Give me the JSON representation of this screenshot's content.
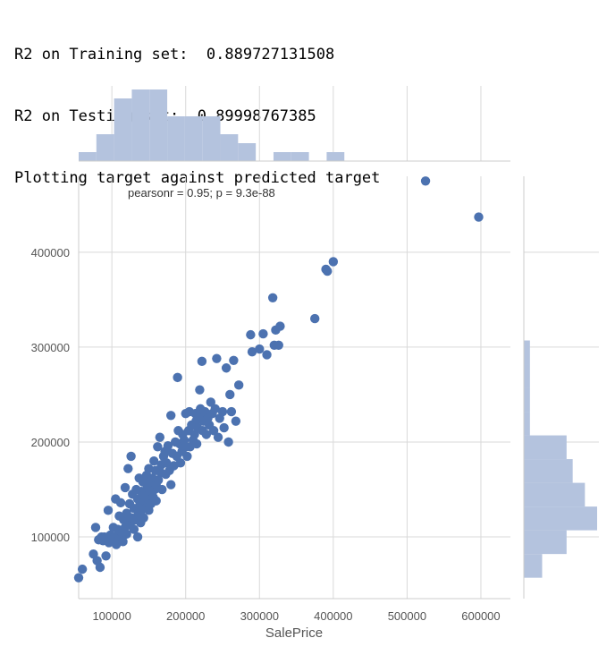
{
  "console": {
    "lines": [
      "R2 on Training set:  0.889727131508",
      "R2 on Testing set:  0.89998767385",
      "Plotting target against predicted target"
    ]
  },
  "chart_data": {
    "type": "scatter",
    "kind": "jointplot",
    "annotation": "pearsonr = 0.95; p = 9.3e-88",
    "xlabel": "SalePrice",
    "ylabel": "",
    "xlim": [
      55000,
      640000
    ],
    "ylim": [
      35000,
      480000
    ],
    "xticks": [
      100000,
      200000,
      300000,
      400000,
      500000,
      600000
    ],
    "yticks": [
      100000,
      200000,
      300000,
      400000
    ],
    "xtick_labels": [
      "100000",
      "200000",
      "300000",
      "400000",
      "500000",
      "600000"
    ],
    "ytick_labels": [
      "100000",
      "200000",
      "300000",
      "400000"
    ],
    "grid": true,
    "colors": {
      "points": "#4c72b0",
      "hist": "#b4c3de",
      "grid": "#d9d9d9",
      "axis": "#cccccc",
      "tick_text": "#555555"
    },
    "points": [
      [
        55000,
        57000
      ],
      [
        60000,
        66000
      ],
      [
        75000,
        82000
      ],
      [
        78000,
        110000
      ],
      [
        80000,
        75000
      ],
      [
        82000,
        97000
      ],
      [
        84000,
        68000
      ],
      [
        86000,
        100000
      ],
      [
        88000,
        96000
      ],
      [
        90000,
        100000
      ],
      [
        92000,
        80000
      ],
      [
        95000,
        128000
      ],
      [
        96000,
        94000
      ],
      [
        98000,
        102000
      ],
      [
        100000,
        97000
      ],
      [
        102000,
        110000
      ],
      [
        104000,
        100000
      ],
      [
        105000,
        140000
      ],
      [
        106000,
        92000
      ],
      [
        108000,
        108000
      ],
      [
        110000,
        98000
      ],
      [
        110000,
        122000
      ],
      [
        112000,
        136000
      ],
      [
        114000,
        104000
      ],
      [
        115000,
        95000
      ],
      [
        116000,
        118000
      ],
      [
        118000,
        152000
      ],
      [
        118000,
        110000
      ],
      [
        120000,
        103000
      ],
      [
        120000,
        125000
      ],
      [
        122000,
        172000
      ],
      [
        124000,
        135000
      ],
      [
        125000,
        114000
      ],
      [
        126000,
        185000
      ],
      [
        127000,
        120000
      ],
      [
        128000,
        145000
      ],
      [
        130000,
        108000
      ],
      [
        130000,
        130000
      ],
      [
        132000,
        118000
      ],
      [
        133000,
        150000
      ],
      [
        135000,
        100000
      ],
      [
        135000,
        140000
      ],
      [
        136000,
        125000
      ],
      [
        137000,
        162000
      ],
      [
        138000,
        134000
      ],
      [
        139000,
        115000
      ],
      [
        140000,
        148000
      ],
      [
        140000,
        128000
      ],
      [
        142000,
        158000
      ],
      [
        143000,
        120000
      ],
      [
        144000,
        145000
      ],
      [
        145000,
        138000
      ],
      [
        146000,
        130000
      ],
      [
        147000,
        165000
      ],
      [
        148000,
        152000
      ],
      [
        149000,
        140000
      ],
      [
        150000,
        128000
      ],
      [
        150000,
        172000
      ],
      [
        152000,
        158000
      ],
      [
        153000,
        135000
      ],
      [
        154000,
        148000
      ],
      [
        155000,
        162000
      ],
      [
        156000,
        142000
      ],
      [
        157000,
        180000
      ],
      [
        158000,
        150000
      ],
      [
        159000,
        170000
      ],
      [
        160000,
        155000
      ],
      [
        160000,
        138000
      ],
      [
        162000,
        195000
      ],
      [
        163000,
        160000
      ],
      [
        165000,
        205000
      ],
      [
        166000,
        168000
      ],
      [
        167000,
        176000
      ],
      [
        168000,
        150000
      ],
      [
        170000,
        185000
      ],
      [
        172000,
        190000
      ],
      [
        173000,
        166000
      ],
      [
        174000,
        178000
      ],
      [
        176000,
        196000
      ],
      [
        178000,
        170000
      ],
      [
        180000,
        228000
      ],
      [
        180000,
        155000
      ],
      [
        182000,
        188000
      ],
      [
        184000,
        175000
      ],
      [
        186000,
        200000
      ],
      [
        188000,
        185000
      ],
      [
        189000,
        268000
      ],
      [
        190000,
        212000
      ],
      [
        192000,
        198000
      ],
      [
        193000,
        178000
      ],
      [
        195000,
        190000
      ],
      [
        196000,
        208000
      ],
      [
        198000,
        202000
      ],
      [
        200000,
        195000
      ],
      [
        200000,
        230000
      ],
      [
        202000,
        185000
      ],
      [
        204000,
        212000
      ],
      [
        205000,
        232000
      ],
      [
        206000,
        195000
      ],
      [
        208000,
        218000
      ],
      [
        210000,
        202000
      ],
      [
        212000,
        208000
      ],
      [
        213000,
        230000
      ],
      [
        214000,
        222000
      ],
      [
        215000,
        198000
      ],
      [
        216000,
        215000
      ],
      [
        218000,
        228000
      ],
      [
        219000,
        255000
      ],
      [
        220000,
        235000
      ],
      [
        221000,
        225000
      ],
      [
        222000,
        285000
      ],
      [
        223000,
        212000
      ],
      [
        224000,
        222000
      ],
      [
        226000,
        232000
      ],
      [
        228000,
        208000
      ],
      [
        230000,
        225000
      ],
      [
        232000,
        218000
      ],
      [
        234000,
        242000
      ],
      [
        236000,
        230000
      ],
      [
        238000,
        212000
      ],
      [
        240000,
        235000
      ],
      [
        242000,
        288000
      ],
      [
        244000,
        205000
      ],
      [
        246000,
        225000
      ],
      [
        250000,
        232000
      ],
      [
        252000,
        215000
      ],
      [
        255000,
        278000
      ],
      [
        258000,
        200000
      ],
      [
        260000,
        250000
      ],
      [
        262000,
        232000
      ],
      [
        265000,
        286000
      ],
      [
        268000,
        222000
      ],
      [
        272000,
        260000
      ],
      [
        288000,
        313000
      ],
      [
        290000,
        295000
      ],
      [
        300000,
        298000
      ],
      [
        305000,
        314000
      ],
      [
        310000,
        292000
      ],
      [
        318000,
        352000
      ],
      [
        320000,
        302000
      ],
      [
        322000,
        318000
      ],
      [
        326000,
        302000
      ],
      [
        328000,
        322000
      ],
      [
        375000,
        330000
      ],
      [
        390000,
        382000
      ],
      [
        392000,
        380000
      ],
      [
        400000,
        390000
      ],
      [
        525000,
        475000
      ],
      [
        597000,
        437000
      ]
    ],
    "x_hist": {
      "edges": [
        55000,
        79000,
        103000,
        127000,
        151000,
        175000,
        199000,
        223000,
        247000,
        271000,
        295000,
        319000,
        343000,
        367000,
        391000,
        415000,
        439000,
        463000,
        487000,
        511000,
        535000,
        559000,
        583000,
        607000
      ],
      "counts": [
        1,
        3,
        7,
        8,
        8,
        5,
        5,
        5,
        3,
        2,
        0,
        1,
        1,
        0,
        1,
        0,
        0,
        0,
        0,
        0,
        0,
        0,
        0
      ]
    },
    "y_hist": {
      "edges": [
        57000,
        82000,
        107000,
        132000,
        157000,
        182000,
        207000,
        232000,
        257000,
        282000,
        307000,
        332000,
        357000,
        382000,
        407000,
        432000,
        457000,
        482000
      ],
      "counts": [
        3,
        7,
        12,
        10,
        8,
        7,
        1,
        1,
        1,
        1,
        0,
        0,
        0,
        0,
        0,
        0,
        0
      ]
    }
  }
}
